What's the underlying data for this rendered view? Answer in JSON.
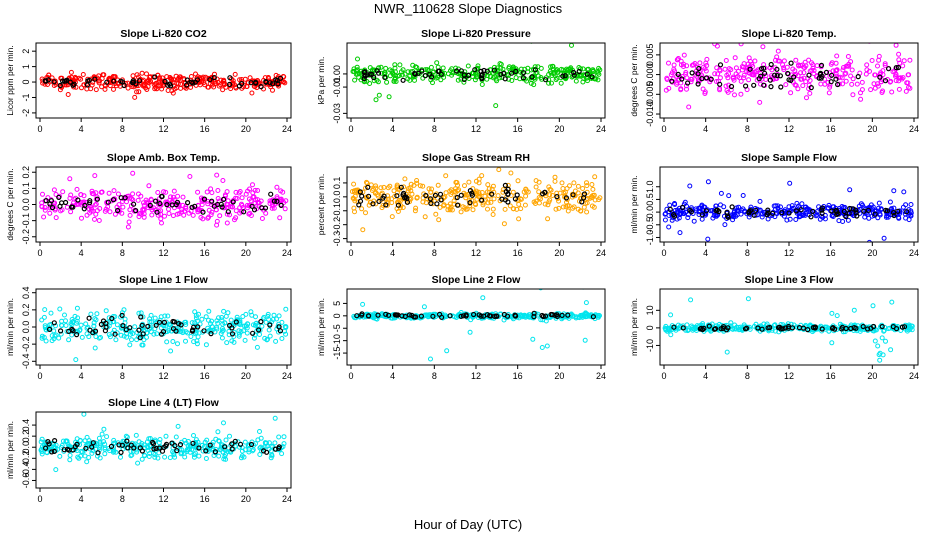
{
  "title": "NWR_110628  Slope Diagnostics",
  "x_axis_title": "Hour of Day (UTC)",
  "chart_data": [
    {
      "type": "scatter",
      "title": "Slope Li-820 CO2",
      "ylabel": "Licor ppm per min.",
      "color": "#ff0000",
      "xlim": [
        0,
        24
      ],
      "ylim": [
        -2.2,
        2.4
      ],
      "xticks": [
        0,
        4,
        8,
        12,
        16,
        20,
        24
      ],
      "yticks": [
        -2,
        -1,
        0,
        1,
        2
      ],
      "ytick_labels": [
        "-2",
        "-1",
        "0",
        "1",
        "2"
      ],
      "spread": 0.35,
      "outlier_range": 2.0
    },
    {
      "type": "scatter",
      "title": "Slope Li-820 Pressure",
      "ylabel": "kPa per min.",
      "color": "#00cc00",
      "xlim": [
        0,
        24
      ],
      "ylim": [
        -0.032,
        0.022
      ],
      "xticks": [
        0,
        4,
        8,
        12,
        16,
        20,
        24
      ],
      "yticks": [
        -0.03,
        -0.01,
        0.0
      ],
      "ytick_labels": [
        "-0.03",
        "-0.01",
        "0.00"
      ],
      "spread": 0.005,
      "outlier_range": 0.03
    },
    {
      "type": "scatter",
      "title": "Slope Li-820 Temp.",
      "ylabel": "degrees C per min.",
      "color": "#ff00ff",
      "xlim": [
        0,
        24
      ],
      "ylim": [
        -0.0105,
        0.0075
      ],
      "xticks": [
        0,
        4,
        8,
        12,
        16,
        20,
        24
      ],
      "yticks": [
        -0.01,
        -0.005,
        0.0,
        0.005
      ],
      "ytick_labels": [
        "-0.010",
        "-0.005",
        "0.000",
        "0.005"
      ],
      "spread": 0.0035,
      "outlier_range": 0.009
    },
    {
      "type": "scatter",
      "title": "Slope Amb. Box Temp.",
      "ylabel": "degrees C per min.",
      "color": "#ff00ff",
      "xlim": [
        0,
        24
      ],
      "ylim": [
        -0.22,
        0.22
      ],
      "xticks": [
        0,
        4,
        8,
        12,
        16,
        20,
        24
      ],
      "yticks": [
        -0.2,
        -0.1,
        0.0,
        0.1,
        0.2
      ],
      "ytick_labels": [
        "-0.2",
        "-0.1",
        "0.0",
        "0.1",
        "0.2"
      ],
      "spread": 0.07,
      "outlier_range": 0.2
    },
    {
      "type": "scatter",
      "title": "Slope Gas Stream RH",
      "ylabel": "percent per min.",
      "color": "#ffa500",
      "xlim": [
        0,
        24
      ],
      "ylim": [
        -0.31,
        0.2
      ],
      "xticks": [
        0,
        4,
        8,
        12,
        16,
        20,
        24
      ],
      "yticks": [
        -0.3,
        -0.2,
        -0.1,
        0.0,
        0.1
      ],
      "ytick_labels": [
        "-0.3",
        "-0.2",
        "-0.1",
        "0.0",
        "0.1"
      ],
      "spread": 0.09,
      "outlier_range": 0.25
    },
    {
      "type": "scatter",
      "title": "Slope Sample Flow",
      "ylabel": "ml/min per min.",
      "color": "#0000ff",
      "xlim": [
        0,
        24
      ],
      "ylim": [
        -1.1,
        1.7
      ],
      "xticks": [
        0,
        4,
        8,
        12,
        16,
        20,
        24
      ],
      "yticks": [
        -1.0,
        -0.5,
        0.0,
        0.5,
        1.0
      ],
      "ytick_labels": [
        "-1.0",
        "-0.5",
        "0.0",
        "0.5",
        "1.0"
      ],
      "spread": 0.22,
      "outlier_range": 1.2
    },
    {
      "type": "scatter",
      "title": "Slope Line 1 Flow",
      "ylabel": "ml/min per min.",
      "color": "#00e5ee",
      "xlim": [
        0,
        24
      ],
      "ylim": [
        -0.42,
        0.42
      ],
      "xticks": [
        0,
        4,
        8,
        12,
        16,
        20,
        24
      ],
      "yticks": [
        -0.4,
        -0.2,
        0.0,
        0.2,
        0.4
      ],
      "ytick_labels": [
        "-0.4",
        "-0.2",
        "0.0",
        "0.2",
        "0.4"
      ],
      "spread": 0.14,
      "outlier_range": 0.4
    },
    {
      "type": "scatter",
      "title": "Slope Line 2 Flow",
      "ylabel": "ml/min per min.",
      "color": "#00e5ee",
      "xlim": [
        0,
        24
      ],
      "ylim": [
        -19,
        10
      ],
      "xticks": [
        0,
        4,
        8,
        12,
        16,
        20,
        24
      ],
      "yticks": [
        -15,
        -10,
        -5,
        0,
        5
      ],
      "ytick_labels": [
        "-15",
        "-10",
        "-5",
        "0",
        "5"
      ],
      "spread": 0.8,
      "outlier_range": 18,
      "burst_at": 18.8
    },
    {
      "type": "scatter",
      "title": "Slope Line 3 Flow",
      "ylabel": "ml/min per min.",
      "color": "#00e5ee",
      "xlim": [
        0,
        24
      ],
      "ylim": [
        -20,
        21
      ],
      "xticks": [
        0,
        4,
        8,
        12,
        16,
        20,
        24
      ],
      "yticks": [
        -10,
        0,
        10
      ],
      "ytick_labels": [
        "-10",
        "0",
        "10"
      ],
      "spread": 1.5,
      "outlier_range": 19,
      "burst_at": 20.5
    },
    {
      "type": "scatter",
      "title": "Slope Line 4 (LT) Flow",
      "ylabel": "ml/min per min.",
      "color": "#00e5ee",
      "xlim": [
        0,
        24
      ],
      "ylim": [
        -0.7,
        0.6
      ],
      "xticks": [
        0,
        4,
        8,
        12,
        16,
        20,
        24
      ],
      "yticks": [
        -0.6,
        -0.4,
        -0.2,
        0.0,
        0.2,
        0.4
      ],
      "ytick_labels": [
        "-0.6",
        "-0.4",
        "-0.2",
        "0.0",
        "0.2",
        "0.4"
      ],
      "spread": 0.14,
      "outlier_range": 0.6
    }
  ]
}
